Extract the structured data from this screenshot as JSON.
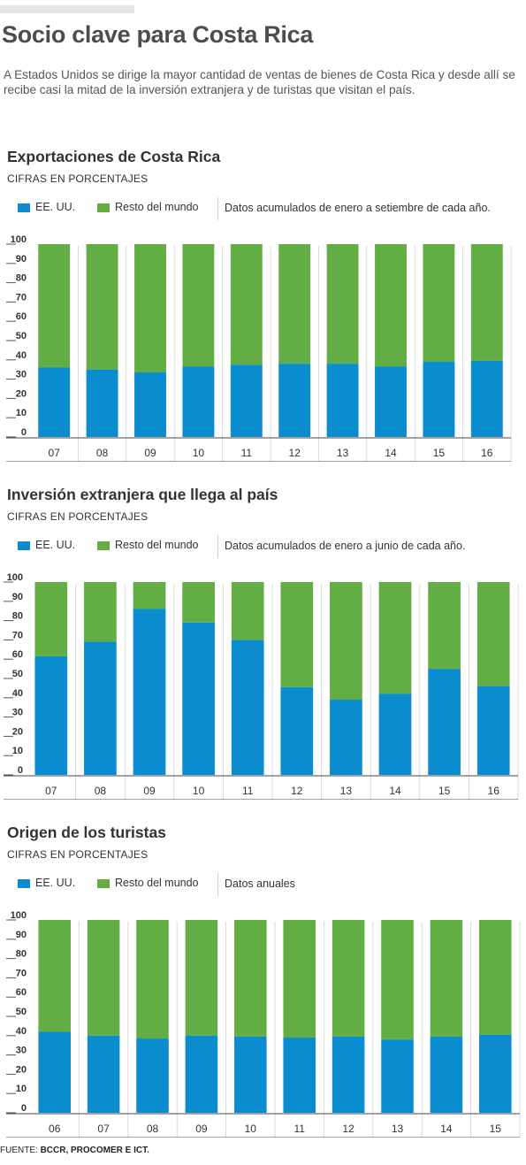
{
  "header": {
    "title": "Socio clave para Costa Rica",
    "intro": "A Estados Unidos se dirige la mayor cantidad de ventas de bienes de Costa Rica y desde allí se recibe casi la mitad de la inversión extranjera y de turistas que visitan el país."
  },
  "colors": {
    "usa": "#0a8ccf",
    "rest": "#62ae45"
  },
  "legend": {
    "usa_label": "EE. UU.",
    "rest_label": "Resto del mundo"
  },
  "sections": [
    {
      "title": "Exportaciones de Costa Rica",
      "subtitle": "CIFRAS EN PORCENTAJES",
      "note": "Datos acumulados de enero a setiembre de cada año."
    },
    {
      "title": "Inversión extranjera que llega al país",
      "subtitle": "CIFRAS EN PORCENTAJES",
      "note": "Datos acumulados de enero a junio de cada año."
    },
    {
      "title": "Origen de los turistas",
      "subtitle": "CIFRAS EN PORCENTAJES",
      "note": "Datos anuales"
    }
  ],
  "chart_data": [
    {
      "type": "bar",
      "stacked": true,
      "title": "Exportaciones de Costa Rica",
      "ylim": [
        0,
        100
      ],
      "yticks": [
        0,
        10,
        20,
        30,
        40,
        50,
        60,
        70,
        80,
        90,
        100
      ],
      "categories": [
        "07",
        "08",
        "09",
        "10",
        "11",
        "12",
        "13",
        "14",
        "15",
        "16"
      ],
      "series": [
        {
          "name": "EE. UU.",
          "values": [
            36,
            35,
            33.5,
            36.5,
            37.5,
            38,
            38,
            36.5,
            39,
            39.5
          ]
        },
        {
          "name": "Resto del mundo",
          "values": [
            64,
            65,
            66.5,
            63.5,
            62.5,
            62,
            62,
            63.5,
            61,
            60.5
          ]
        }
      ]
    },
    {
      "type": "bar",
      "stacked": true,
      "title": "Inversión extranjera que llega al país",
      "ylim": [
        0,
        100
      ],
      "yticks": [
        0,
        10,
        20,
        30,
        40,
        50,
        60,
        70,
        80,
        90,
        100
      ],
      "categories": [
        "07",
        "08",
        "09",
        "10",
        "11",
        "12",
        "13",
        "14",
        "15",
        "16"
      ],
      "series": [
        {
          "name": "EE. UU.",
          "values": [
            61.5,
            69,
            86,
            79,
            70,
            45.5,
            39,
            42,
            55,
            46
          ]
        },
        {
          "name": "Resto del mundo",
          "values": [
            38.5,
            31,
            14,
            21,
            30,
            54.5,
            61,
            58,
            45,
            54
          ]
        }
      ]
    },
    {
      "type": "bar",
      "stacked": true,
      "title": "Origen de los turistas",
      "ylim": [
        0,
        100
      ],
      "yticks": [
        0,
        10,
        20,
        30,
        40,
        50,
        60,
        70,
        80,
        90,
        100
      ],
      "categories": [
        "06",
        "07",
        "08",
        "09",
        "10",
        "11",
        "12",
        "13",
        "14",
        "15"
      ],
      "series": [
        {
          "name": "EE. UU.",
          "values": [
            42,
            40,
            38.5,
            40,
            39.5,
            39,
            39.5,
            38,
            39.5,
            40.5
          ]
        },
        {
          "name": "Resto del mundo",
          "values": [
            58,
            60,
            61.5,
            60,
            60.5,
            61,
            60.5,
            62,
            60.5,
            59.5
          ]
        }
      ]
    }
  ],
  "footer": {
    "source_label": "FUENTE:",
    "source_text": "BCCR, PROCOMER E ICT."
  }
}
